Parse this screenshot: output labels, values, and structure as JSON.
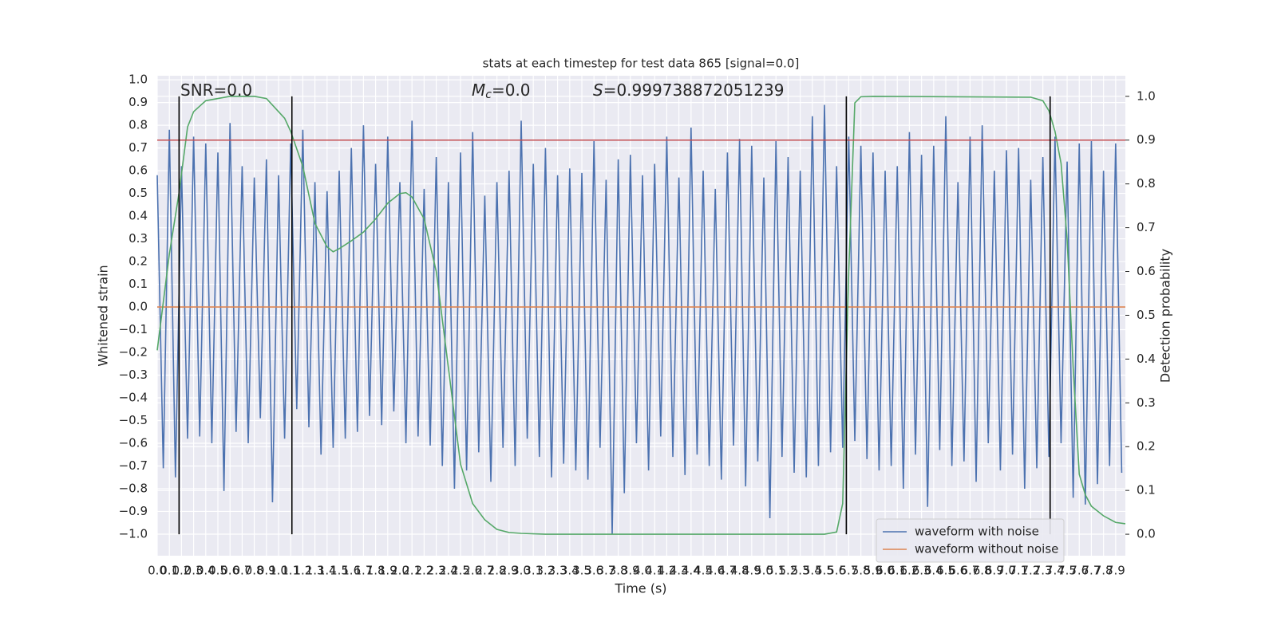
{
  "chart_data": {
    "type": "line",
    "title": "stats at each timestep for test data 865 [signal=0.0]",
    "xlabel": "Time (s)",
    "ylabel": "Whitened strain",
    "y2label": "Detection probability",
    "xlim": [
      0,
      7.98
    ],
    "ylim": [
      -1.095,
      1.018
    ],
    "y2lim": [
      -0.049,
      1.047
    ],
    "grid": true,
    "legend": "lower right",
    "xticks": [
      {
        "value": 0,
        "label": "0.0"
      },
      0.1,
      0.2,
      0.3,
      0.4,
      0.5,
      0.6,
      0.7,
      0.8,
      0.9,
      {
        "value": 1,
        "label": "1.0"
      },
      1.1,
      1.2,
      1.3,
      1.4,
      1.5,
      1.6,
      1.7,
      1.8,
      1.9,
      {
        "value": 2,
        "label": "2.0"
      },
      2.1,
      2.2,
      2.3,
      2.4,
      2.5,
      2.6,
      2.7,
      2.8,
      2.9,
      {
        "value": 3,
        "label": "3.0"
      },
      3.1,
      3.2,
      3.3,
      3.4,
      3.5,
      3.6,
      3.7,
      3.8,
      3.9,
      {
        "value": 4,
        "label": "4.0"
      },
      4.1,
      4.2,
      4.3,
      4.4,
      4.5,
      4.6,
      4.7,
      4.8,
      4.9,
      {
        "value": 5,
        "label": "5.0"
      },
      5.1,
      5.2,
      5.3,
      5.4,
      5.5,
      5.6,
      5.7,
      5.8,
      5.9,
      {
        "value": 6,
        "label": "6.0"
      },
      6.1,
      6.2,
      6.3,
      6.4,
      6.5,
      6.6,
      6.7,
      6.8,
      6.9,
      {
        "value": 7,
        "label": "7.0"
      },
      7.1,
      7.2,
      7.3,
      7.4,
      7.5,
      7.6,
      7.7,
      7.8,
      7.9
    ],
    "yticks": [
      {
        "value": -1,
        "label": "−1.0"
      },
      {
        "value": -0.9,
        "label": "−0.9"
      },
      {
        "value": -0.8,
        "label": "−0.8"
      },
      {
        "value": -0.7,
        "label": "−0.7"
      },
      {
        "value": -0.6,
        "label": "−0.6"
      },
      {
        "value": -0.5,
        "label": "−0.5"
      },
      {
        "value": -0.4,
        "label": "−0.4"
      },
      {
        "value": -0.3,
        "label": "−0.3"
      },
      {
        "value": -0.2,
        "label": "−0.2"
      },
      {
        "value": -0.1,
        "label": "−0.1"
      },
      {
        "value": 0,
        "label": "0.0"
      },
      0.1,
      0.2,
      0.3,
      0.4,
      0.5,
      0.6,
      0.7,
      0.8,
      0.9,
      {
        "value": 1,
        "label": "1.0"
      }
    ],
    "y2ticks": [
      {
        "value": 0,
        "label": "0.0"
      },
      0.1,
      0.2,
      0.3,
      0.4,
      0.5,
      0.6,
      0.7,
      0.8,
      0.9,
      {
        "value": 1,
        "label": "1.0"
      }
    ],
    "annotations": [
      {
        "text": "SNR=0.0"
      },
      {
        "symbol": "M",
        "subscript": "c",
        "text": "=0.0"
      },
      {
        "symbol": "S",
        "text": "=0.999738872051239"
      }
    ],
    "series": [
      {
        "name": "waveform with noise",
        "color": "#4c72b0",
        "x": [
          0,
          0.05,
          0.1,
          0.15,
          0.2,
          0.25,
          0.3,
          0.35,
          0.4,
          0.45,
          0.5,
          0.55,
          0.6,
          0.65,
          0.7,
          0.75,
          0.8,
          0.85,
          0.9,
          0.95,
          1,
          1.05,
          1.1,
          1.15,
          1.2,
          1.25,
          1.3,
          1.35,
          1.4,
          1.45,
          1.5,
          1.55,
          1.6,
          1.65,
          1.7,
          1.75,
          1.8,
          1.85,
          1.9,
          1.95,
          2,
          2.05,
          2.1,
          2.15,
          2.2,
          2.25,
          2.3,
          2.35,
          2.4,
          2.45,
          2.5,
          2.55,
          2.6,
          2.65,
          2.7,
          2.75,
          2.8,
          2.85,
          2.9,
          2.95,
          3,
          3.05,
          3.1,
          3.15,
          3.2,
          3.25,
          3.3,
          3.35,
          3.4,
          3.45,
          3.5,
          3.55,
          3.6,
          3.65,
          3.7,
          3.75,
          3.8,
          3.85,
          3.9,
          3.95,
          4,
          4.05,
          4.1,
          4.15,
          4.2,
          4.25,
          4.3,
          4.35,
          4.4,
          4.45,
          4.5,
          4.55,
          4.6,
          4.65,
          4.7,
          4.75,
          4.8,
          4.85,
          4.9,
          4.95,
          5,
          5.05,
          5.1,
          5.15,
          5.2,
          5.25,
          5.3,
          5.35,
          5.4,
          5.45,
          5.5,
          5.55,
          5.6,
          5.65,
          5.7,
          5.75,
          5.8,
          5.85,
          5.9,
          5.95,
          6,
          6.05,
          6.1,
          6.15,
          6.2,
          6.25,
          6.3,
          6.35,
          6.4,
          6.45,
          6.5,
          6.55,
          6.6,
          6.65,
          6.7,
          6.75,
          6.8,
          6.85,
          6.9,
          6.95,
          7,
          7.05,
          7.1,
          7.15,
          7.2,
          7.25,
          7.3,
          7.35,
          7.4,
          7.45,
          7.5,
          7.55,
          7.6,
          7.65,
          7.7,
          7.75,
          7.8,
          7.85,
          7.9,
          7.95
        ],
        "values": [
          0.58,
          -0.71,
          0.78,
          -0.75,
          0.62,
          -0.58,
          0.75,
          -0.57,
          0.72,
          -0.6,
          0.68,
          -0.81,
          0.81,
          -0.55,
          0.62,
          -0.6,
          0.57,
          -0.49,
          0.65,
          -0.86,
          0.58,
          -0.58,
          0.72,
          -0.45,
          0.78,
          -0.53,
          0.55,
          -0.65,
          0.51,
          -0.62,
          0.6,
          -0.58,
          0.7,
          -0.55,
          0.8,
          -0.48,
          0.63,
          -0.52,
          0.75,
          -0.46,
          0.55,
          -0.6,
          0.82,
          -0.57,
          0.52,
          -0.61,
          0.66,
          -0.7,
          0.55,
          -0.8,
          0.68,
          -0.72,
          0.77,
          -0.64,
          0.49,
          -0.77,
          0.55,
          -0.62,
          0.6,
          -0.7,
          0.82,
          -0.58,
          0.63,
          -0.66,
          0.7,
          -0.75,
          0.58,
          -0.69,
          0.61,
          -0.72,
          0.59,
          -0.76,
          0.73,
          -0.62,
          0.56,
          -1.0,
          0.65,
          -0.82,
          0.67,
          -0.6,
          0.58,
          -0.72,
          0.63,
          -0.57,
          0.75,
          -0.66,
          0.57,
          -0.74,
          0.79,
          -0.65,
          0.6,
          -0.7,
          0.52,
          -0.76,
          0.68,
          -0.61,
          0.74,
          -0.79,
          0.71,
          -0.68,
          0.57,
          -0.93,
          0.73,
          -0.66,
          0.66,
          -0.73,
          0.6,
          -0.75,
          0.84,
          -0.7,
          0.89,
          -0.64,
          0.62,
          -0.62,
          0.75,
          -0.59,
          0.71,
          -0.67,
          0.68,
          -0.72,
          0.6,
          -0.7,
          0.62,
          -0.8,
          0.77,
          -0.65,
          0.67,
          -0.88,
          0.71,
          -0.63,
          0.84,
          -0.7,
          0.55,
          -0.68,
          0.75,
          -0.77,
          0.8,
          -0.6,
          0.6,
          -0.72,
          0.69,
          -0.65,
          0.7,
          -0.8,
          0.56,
          -0.71,
          0.66,
          -0.66,
          0.75,
          -0.6,
          0.64,
          -0.84,
          0.72,
          -0.87,
          0.73,
          -0.78,
          0.6,
          -0.7,
          0.72,
          -0.73
        ]
      },
      {
        "name": "waveform without noise",
        "color": "#dd8452",
        "x": [
          0,
          7.98
        ],
        "values": [
          0,
          0
        ]
      },
      {
        "color": "#55a868",
        "axis": "y2",
        "x": [
          0,
          0.1,
          0.18,
          0.25,
          0.3,
          0.4,
          0.5,
          0.6,
          0.7,
          0.8,
          0.9,
          1,
          1.05,
          1.1,
          1.2,
          1.3,
          1.4,
          1.45,
          1.5,
          1.6,
          1.7,
          1.8,
          1.9,
          2,
          2.05,
          2.1,
          2.2,
          2.3,
          2.4,
          2.5,
          2.6,
          2.7,
          2.8,
          2.9,
          3,
          3.2,
          5.5,
          5.6,
          5.65,
          5.7,
          5.75,
          5.8,
          5.9,
          7.2,
          7.3,
          7.35,
          7.4,
          7.45,
          7.5,
          7.55,
          7.6,
          7.65,
          7.7,
          7.8,
          7.9,
          7.98
        ],
        "values": [
          0.42,
          0.64,
          0.78,
          0.93,
          0.965,
          0.99,
          0.995,
          1,
          1,
          1,
          0.995,
          0.965,
          0.95,
          0.92,
          0.84,
          0.71,
          0.656,
          0.645,
          0.652,
          0.67,
          0.69,
          0.72,
          0.756,
          0.778,
          0.78,
          0.77,
          0.72,
          0.6,
          0.38,
          0.16,
          0.07,
          0.033,
          0.011,
          0.004,
          0.002,
          0,
          0,
          0.005,
          0.07,
          0.6,
          0.985,
          0.999,
          1,
          0.998,
          0.99,
          0.967,
          0.92,
          0.847,
          0.674,
          0.38,
          0.137,
          0.09,
          0.064,
          0.042,
          0.027,
          0.024
        ]
      }
    ],
    "hline": {
      "value": 0.9,
      "axis": "y2",
      "color": "#c44e52"
    },
    "vlines": {
      "x": [
        0.18,
        1.11,
        5.68,
        7.36
      ],
      "ymin": 0,
      "ymax": 1,
      "axis": "y2",
      "color": "#000000"
    }
  }
}
